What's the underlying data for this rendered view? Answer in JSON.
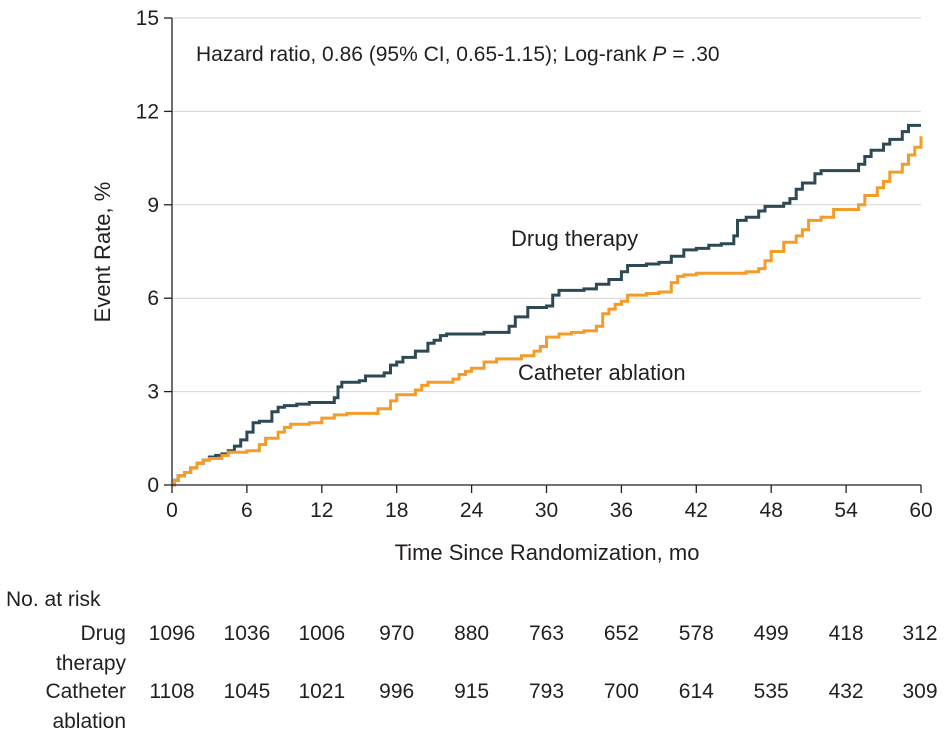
{
  "chart_data": {
    "type": "line",
    "step": true,
    "annotation": {
      "prefix": "Hazard ratio, 0.86 (95% CI, 0.65-1.15); Log-rank ",
      "italic": "P",
      "suffix": " = .30"
    },
    "xlabel": "Time Since Randomization, mo",
    "ylabel": "Event Rate, %",
    "xlim": [
      0,
      60
    ],
    "ylim": [
      0,
      15
    ],
    "xticks": [
      0,
      6,
      12,
      18,
      24,
      30,
      36,
      42,
      48,
      54,
      60
    ],
    "yticks": [
      0,
      3,
      6,
      9,
      12,
      15
    ],
    "grid": "horizontal",
    "series": [
      {
        "name": "Drug therapy",
        "color": "#2d4a54",
        "points": [
          [
            0,
            0
          ],
          [
            0.2,
            0.15
          ],
          [
            0.5,
            0.3
          ],
          [
            1,
            0.4
          ],
          [
            1.5,
            0.55
          ],
          [
            2,
            0.7
          ],
          [
            2.5,
            0.8
          ],
          [
            3,
            0.9
          ],
          [
            3.5,
            0.95
          ],
          [
            4,
            1.0
          ],
          [
            4.5,
            1.1
          ],
          [
            5,
            1.25
          ],
          [
            5.5,
            1.45
          ],
          [
            6,
            1.7
          ],
          [
            6.5,
            2.0
          ],
          [
            7,
            2.05
          ],
          [
            8,
            2.35
          ],
          [
            8.5,
            2.5
          ],
          [
            9,
            2.55
          ],
          [
            10,
            2.6
          ],
          [
            11,
            2.65
          ],
          [
            12,
            2.65
          ],
          [
            13,
            2.8
          ],
          [
            13.3,
            3.15
          ],
          [
            13.6,
            3.3
          ],
          [
            15,
            3.35
          ],
          [
            15.5,
            3.5
          ],
          [
            17,
            3.6
          ],
          [
            17.5,
            3.85
          ],
          [
            18,
            3.95
          ],
          [
            18.5,
            4.1
          ],
          [
            19.5,
            4.3
          ],
          [
            20.5,
            4.55
          ],
          [
            21,
            4.65
          ],
          [
            21.5,
            4.8
          ],
          [
            22,
            4.85
          ],
          [
            25,
            4.9
          ],
          [
            27,
            5.1
          ],
          [
            27.5,
            5.4
          ],
          [
            28.5,
            5.7
          ],
          [
            30,
            5.75
          ],
          [
            30.5,
            6.1
          ],
          [
            31,
            6.25
          ],
          [
            33,
            6.3
          ],
          [
            34,
            6.45
          ],
          [
            35,
            6.6
          ],
          [
            36,
            6.85
          ],
          [
            36.5,
            7.05
          ],
          [
            38,
            7.1
          ],
          [
            39,
            7.15
          ],
          [
            40,
            7.35
          ],
          [
            41,
            7.55
          ],
          [
            42,
            7.6
          ],
          [
            43,
            7.7
          ],
          [
            44,
            7.75
          ],
          [
            45,
            8.0
          ],
          [
            45.3,
            8.5
          ],
          [
            46,
            8.6
          ],
          [
            47,
            8.8
          ],
          [
            47.5,
            8.95
          ],
          [
            49,
            9.05
          ],
          [
            49.5,
            9.2
          ],
          [
            50,
            9.5
          ],
          [
            50.5,
            9.7
          ],
          [
            51.5,
            10.0
          ],
          [
            52,
            10.1
          ],
          [
            55,
            10.3
          ],
          [
            55.5,
            10.55
          ],
          [
            56,
            10.75
          ],
          [
            57,
            10.95
          ],
          [
            57.5,
            11.1
          ],
          [
            58.5,
            11.35
          ],
          [
            59,
            11.55
          ],
          [
            60,
            11.55
          ]
        ]
      },
      {
        "name": "Catheter ablation",
        "color": "#f39c2a",
        "points": [
          [
            0,
            0
          ],
          [
            0.2,
            0.15
          ],
          [
            0.5,
            0.3
          ],
          [
            1,
            0.4
          ],
          [
            1.5,
            0.55
          ],
          [
            2,
            0.7
          ],
          [
            2.5,
            0.8
          ],
          [
            3,
            0.85
          ],
          [
            4,
            0.95
          ],
          [
            4.5,
            1.05
          ],
          [
            6,
            1.1
          ],
          [
            7,
            1.3
          ],
          [
            7.5,
            1.5
          ],
          [
            8.5,
            1.7
          ],
          [
            9,
            1.85
          ],
          [
            9.5,
            1.95
          ],
          [
            11,
            2.0
          ],
          [
            12,
            2.15
          ],
          [
            13,
            2.25
          ],
          [
            14,
            2.3
          ],
          [
            16.5,
            2.45
          ],
          [
            17.5,
            2.7
          ],
          [
            18,
            2.9
          ],
          [
            19.5,
            3.05
          ],
          [
            20,
            3.2
          ],
          [
            20.5,
            3.3
          ],
          [
            22.5,
            3.4
          ],
          [
            23,
            3.55
          ],
          [
            23.5,
            3.65
          ],
          [
            24,
            3.75
          ],
          [
            25,
            3.95
          ],
          [
            26,
            4.05
          ],
          [
            28,
            4.15
          ],
          [
            29,
            4.3
          ],
          [
            29.5,
            4.45
          ],
          [
            30,
            4.75
          ],
          [
            31,
            4.85
          ],
          [
            32,
            4.9
          ],
          [
            33,
            4.95
          ],
          [
            34,
            5.1
          ],
          [
            34.5,
            5.5
          ],
          [
            35,
            5.65
          ],
          [
            35.5,
            5.8
          ],
          [
            36,
            5.9
          ],
          [
            36.5,
            6.1
          ],
          [
            38,
            6.15
          ],
          [
            39,
            6.2
          ],
          [
            40,
            6.5
          ],
          [
            40.5,
            6.7
          ],
          [
            41,
            6.75
          ],
          [
            42,
            6.8
          ],
          [
            46,
            6.85
          ],
          [
            47,
            6.95
          ],
          [
            47.5,
            7.2
          ],
          [
            48,
            7.5
          ],
          [
            49,
            7.8
          ],
          [
            50,
            8.0
          ],
          [
            50.5,
            8.2
          ],
          [
            51,
            8.5
          ],
          [
            52,
            8.6
          ],
          [
            53,
            8.85
          ],
          [
            55,
            9.0
          ],
          [
            55.5,
            9.3
          ],
          [
            56.5,
            9.55
          ],
          [
            57,
            9.75
          ],
          [
            57.5,
            10.05
          ],
          [
            58.5,
            10.3
          ],
          [
            59,
            10.6
          ],
          [
            59.5,
            10.85
          ],
          [
            60,
            11.2
          ]
        ]
      }
    ],
    "risk_table": {
      "header": "No. at risk",
      "rows": [
        {
          "label_lines": [
            "Drug",
            "therapy"
          ],
          "values": [
            "1096",
            "1036",
            "1006",
            "970",
            "880",
            "763",
            "652",
            "578",
            "499",
            "418",
            "312"
          ]
        },
        {
          "label_lines": [
            "Catheter",
            "ablation"
          ],
          "values": [
            "1108",
            "1045",
            "1021",
            "996",
            "915",
            "793",
            "700",
            "614",
            "535",
            "432",
            "309"
          ]
        }
      ]
    }
  }
}
